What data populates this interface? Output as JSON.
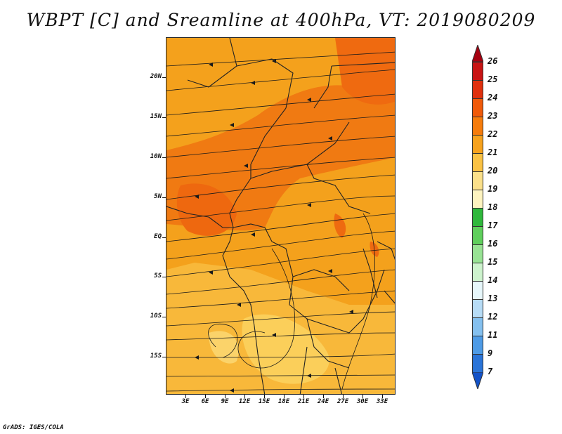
{
  "title": "WBPT [C] and Sreamline at 400hPa, VT: 2019080209",
  "credit": "GrADS: IGES/COLA",
  "map": {
    "lat_labels": [
      "20N",
      "15N",
      "10N",
      "5N",
      "EQ",
      "5S",
      "10S",
      "15S"
    ],
    "lon_labels": [
      "3E",
      "6E",
      "9E",
      "12E",
      "15E",
      "18E",
      "21E",
      "24E",
      "27E",
      "30E",
      "33E"
    ],
    "field": "wet-bulb potential temperature",
    "overlay": "streamlines"
  },
  "colorbar": {
    "labels": [
      "26",
      "25",
      "24",
      "23",
      "22",
      "21",
      "20",
      "19",
      "18",
      "17",
      "16",
      "15",
      "14",
      "13",
      "12",
      "11",
      "9",
      "7"
    ],
    "colors": [
      "#a50010",
      "#c81414",
      "#e0300e",
      "#f05a0a",
      "#f67c0c",
      "#f7a21d",
      "#fac244",
      "#fbe08a",
      "#fef4c0",
      "#2fb83c",
      "#5fcf5c",
      "#98e394",
      "#cdf3cd",
      "#e7f7fb",
      "#b7dcf6",
      "#84c0ef",
      "#4e9be6",
      "#2a74d8",
      "#1352c8"
    ]
  }
}
